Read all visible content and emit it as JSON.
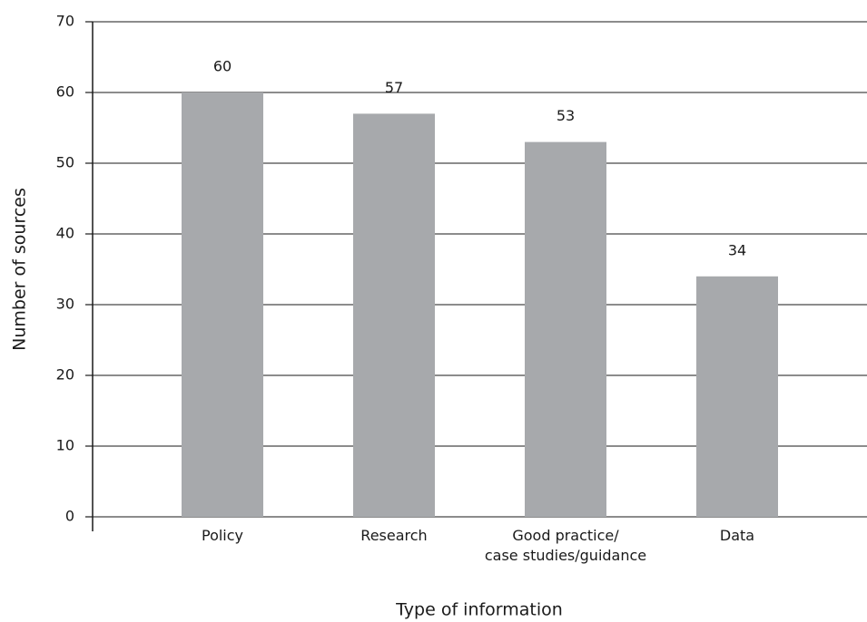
{
  "chart_data": {
    "type": "bar",
    "x_label": "Type of information",
    "y_label": "Number of sources",
    "categories": [
      "Policy",
      "Research",
      "Good practice/\ncase studies/guidance",
      "Data"
    ],
    "values": [
      60,
      57,
      53,
      34
    ],
    "color": "#a7a9ac",
    "ylim": [
      0,
      70
    ],
    "yticks": [
      0,
      10,
      20,
      30,
      40,
      50,
      60,
      70
    ],
    "grid": true
  }
}
